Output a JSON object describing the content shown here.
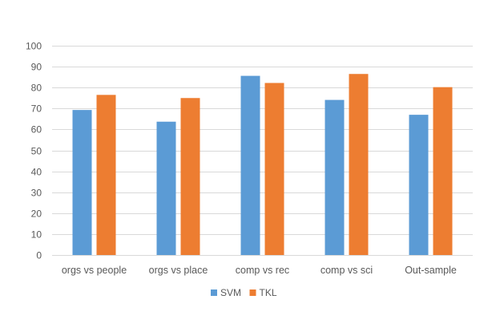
{
  "chart_data": {
    "type": "bar",
    "title": "",
    "xlabel": "",
    "ylabel": "",
    "categories": [
      "orgs vs people",
      "orgs vs place",
      "comp vs rec",
      "comp vs sci",
      "Out-sample"
    ],
    "series": [
      {
        "name": "SVM",
        "color": "#5b9bd5",
        "values": [
          69.3,
          63.7,
          85.6,
          74.1,
          67.0
        ]
      },
      {
        "name": "TKL",
        "color": "#ed7d31",
        "values": [
          76.5,
          75.0,
          82.2,
          86.5,
          80.2
        ]
      }
    ],
    "ylim": [
      0,
      100
    ],
    "yticks": [
      "0",
      "10",
      "20",
      "30",
      "40",
      "50",
      "60",
      "70",
      "80",
      "90",
      "100"
    ],
    "grid": true,
    "legend_position": "bottom"
  }
}
